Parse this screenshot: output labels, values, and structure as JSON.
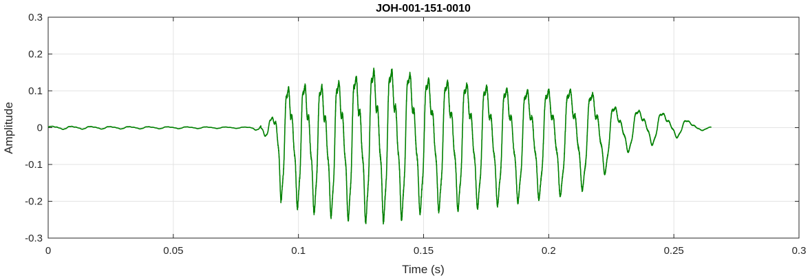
{
  "chart_data": {
    "type": "line",
    "title": "JOH-001-151-0010",
    "xlabel": "Time (s)",
    "ylabel": "Amplitude",
    "xlim": [
      0,
      0.3
    ],
    "ylim": [
      -0.3,
      0.3
    ],
    "xticks": [
      0,
      0.05,
      0.1,
      0.15,
      0.2,
      0.25,
      0.3
    ],
    "xtick_labels": [
      "0",
      "0.05",
      "0.1",
      "0.15",
      "0.2",
      "0.25",
      "0.3"
    ],
    "yticks": [
      -0.3,
      -0.2,
      -0.1,
      0,
      0.1,
      0.2,
      0.3
    ],
    "ytick_labels": [
      "-0.3",
      "-0.2",
      "-0.1",
      "0",
      "0.1",
      "0.2",
      "0.3"
    ],
    "grid": true,
    "line_color": "#008000",
    "series": [
      {
        "description_values": "approximate waveform envelope (upper/lower peaks) over time",
        "envelope": {
          "t": [
            0,
            0.02,
            0.05,
            0.08,
            0.085,
            0.09,
            0.093,
            0.1,
            0.11,
            0.12,
            0.13,
            0.14,
            0.15,
            0.17,
            0.19,
            0.21,
            0.22,
            0.225,
            0.23,
            0.24,
            0.25,
            0.26,
            0.265
          ],
          "upper": [
            0.005,
            0.004,
            0.003,
            0.002,
            0.01,
            0.04,
            0.14,
            0.16,
            0.16,
            0.18,
            0.21,
            0.21,
            0.18,
            0.16,
            0.14,
            0.14,
            0.12,
            0.08,
            0.06,
            0.06,
            0.04,
            0.01,
            0.002
          ],
          "lower": [
            -0.005,
            -0.004,
            -0.003,
            -0.002,
            -0.01,
            -0.05,
            -0.2,
            -0.22,
            -0.24,
            -0.25,
            -0.26,
            -0.25,
            -0.23,
            -0.22,
            -0.2,
            -0.18,
            -0.15,
            -0.1,
            -0.07,
            -0.05,
            -0.03,
            -0.01,
            -0.002
          ]
        }
      }
    ]
  }
}
